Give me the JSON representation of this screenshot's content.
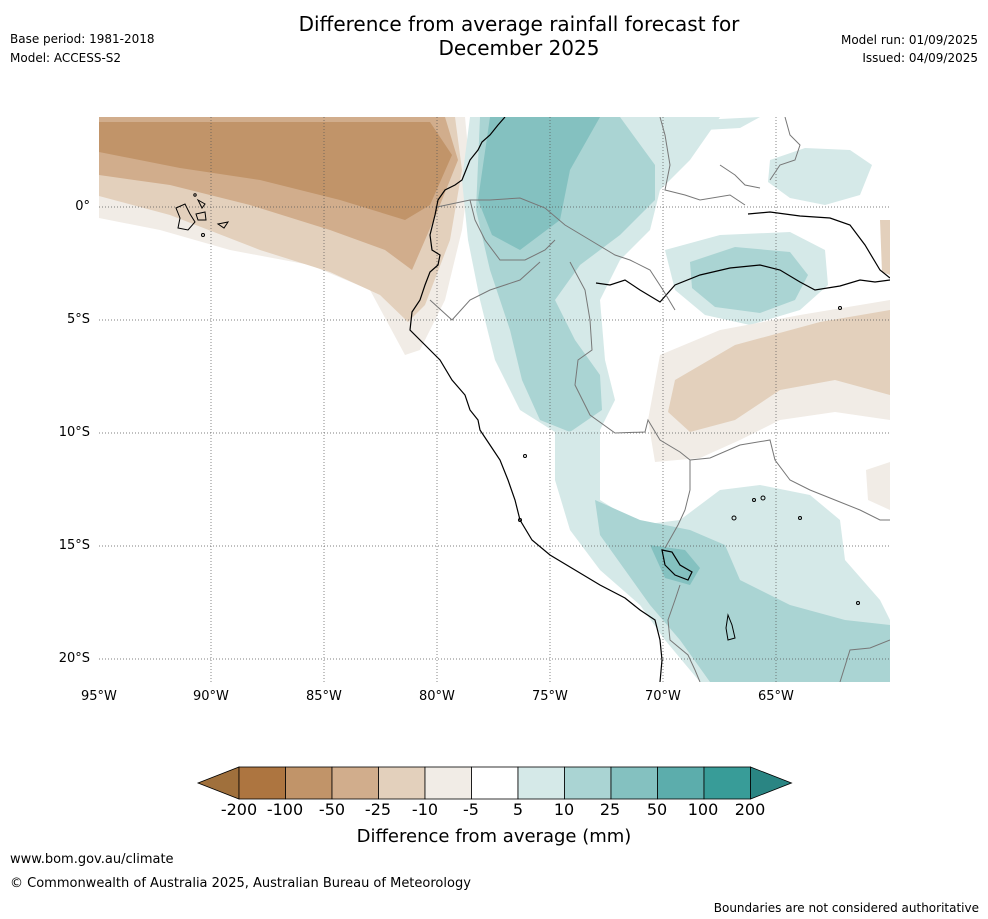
{
  "title_line1": "Difference from average rainfall forecast for",
  "title_line2": "December 2025",
  "base_period": "Base period: 1981-2018",
  "model": "Model: ACCESS-S2",
  "model_run": "Model run: 01/09/2025",
  "issued": "Issued: 04/09/2025",
  "lat_labels": [
    "0°",
    "5°S",
    "10°S",
    "15°S",
    "20°S"
  ],
  "lon_labels": [
    "95°W",
    "90°W",
    "85°W",
    "80°W",
    "75°W",
    "70°W",
    "65°W"
  ],
  "colorbar": {
    "title": "Difference from average (mm)",
    "ticks": [
      "-200",
      "-100",
      "-50",
      "-25",
      "-10",
      "-5",
      "5",
      "10",
      "25",
      "50",
      "100",
      "200"
    ],
    "colors": [
      "#a0703c",
      "#ad7540",
      "#c19469",
      "#d1ad8c",
      "#e3d0bc",
      "#f1ece6",
      "#ffffff",
      "#d5e9e8",
      "#aad4d3",
      "#84c1c0",
      "#5cadac",
      "#389c98",
      "#2a8583"
    ]
  },
  "footer": {
    "website": "www.bom.gov.au/climate",
    "copyright": "© Commonwealth of Australia 2025, Australian Bureau of Meteorology",
    "disclaimer": "Boundaries are not considered authoritative"
  }
}
